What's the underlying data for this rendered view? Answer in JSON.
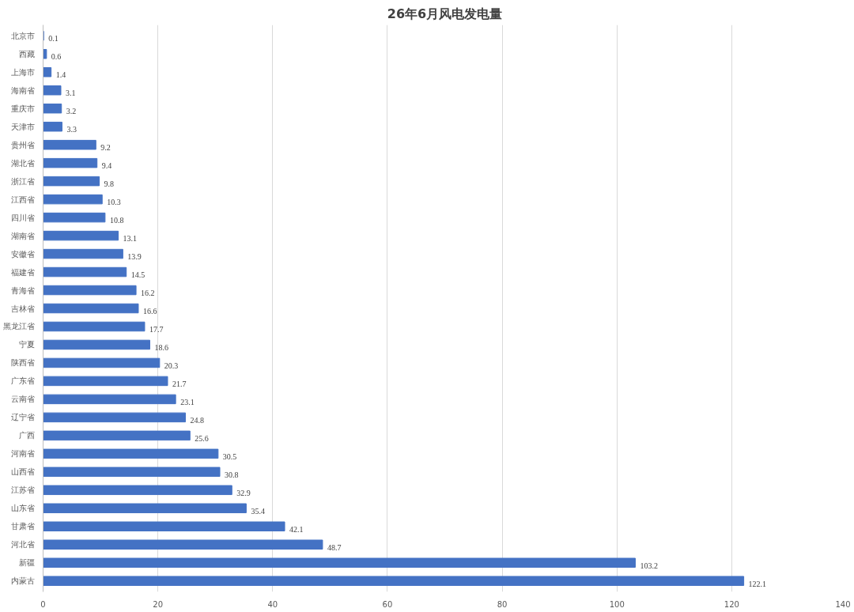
{
  "chart_data": {
    "type": "bar",
    "orientation": "horizontal",
    "title": "26年6月风电发电量",
    "categories": [
      "北京市",
      "西藏",
      "上海市",
      "海南省",
      "重庆市",
      "天津市",
      "贵州省",
      "湖北省",
      "浙江省",
      "江西省",
      "四川省",
      "湖南省",
      "安徽省",
      "福建省",
      "青海省",
      "吉林省",
      "黑龙江省",
      "宁夏",
      "陕西省",
      "广东省",
      "云南省",
      "辽宁省",
      "广西",
      "河南省",
      "山西省",
      "江苏省",
      "山东省",
      "甘肃省",
      "河北省",
      "新疆",
      "内蒙古"
    ],
    "values": [
      0.1,
      0.6,
      1.4,
      3.1,
      3.2,
      3.3,
      9.2,
      9.4,
      9.8,
      10.3,
      10.8,
      13.1,
      13.9,
      14.5,
      16.2,
      16.6,
      17.7,
      18.6,
      20.3,
      21.7,
      23.1,
      24.8,
      25.6,
      30.5,
      30.8,
      32.9,
      35.4,
      42.1,
      48.7,
      103.2,
      122.1
    ],
    "color": "#4472c4",
    "xlim": [
      0,
      140
    ],
    "xticks": [
      0,
      20,
      40,
      60,
      80,
      100,
      120,
      140
    ],
    "grid": "x",
    "data_labels": true
  }
}
